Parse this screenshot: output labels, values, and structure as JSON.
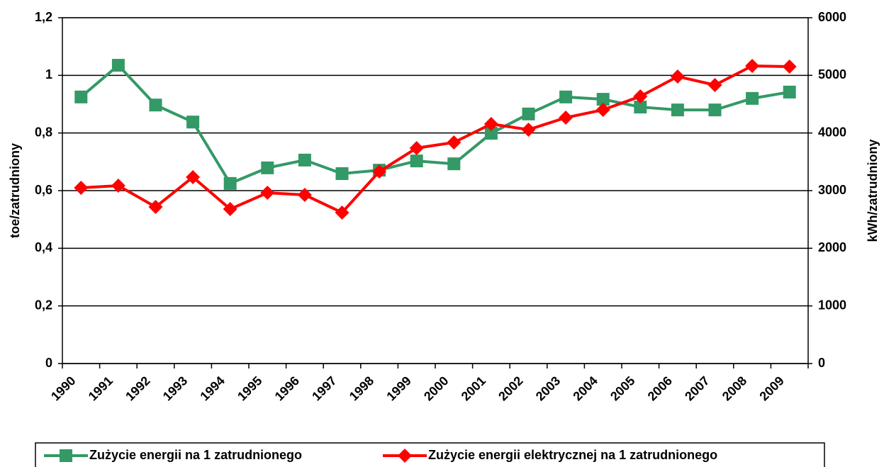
{
  "chart_data": {
    "type": "line",
    "categories": [
      "1990",
      "1991",
      "1992",
      "1993",
      "1994",
      "1995",
      "1996",
      "1997",
      "1998",
      "1999",
      "2000",
      "2001",
      "2002",
      "2003",
      "2004",
      "2005",
      "2006",
      "2007",
      "2008",
      "2009"
    ],
    "series": [
      {
        "name": "Zużycie energii na 1 zatrudnionego",
        "color": "#339966",
        "marker": "square",
        "values": [
          0.925,
          1.035,
          0.897,
          0.838,
          0.625,
          0.679,
          0.706,
          0.659,
          0.671,
          0.703,
          0.693,
          0.799,
          0.866,
          0.925,
          0.917,
          0.89,
          0.88,
          0.88,
          0.92,
          0.942
        ]
      },
      {
        "name": "Zużycie energii elektrycznej na 1 zatrudnionego",
        "color": "#ff0000",
        "marker": "diamond",
        "axis": "y2",
        "values": [
          3049,
          3086,
          2717,
          3234,
          2680,
          2963,
          2926,
          2619,
          3332,
          3738,
          3836,
          4156,
          4058,
          4266,
          4402,
          4635,
          4980,
          4832,
          5164,
          5152
        ]
      }
    ],
    "ylabel": "toe/zatrudniony",
    "y2label": "kWh/zatrudniony",
    "ylim": [
      0,
      1.2
    ],
    "yticks": [
      0,
      {
        "value": 0.2,
        "label": "0,2"
      },
      {
        "value": 0.4,
        "label": "0,4"
      },
      {
        "value": 0.6,
        "label": "0,6"
      },
      {
        "value": 0.8,
        "label": "0,8"
      },
      1,
      {
        "value": 1.2,
        "label": "1,2"
      }
    ],
    "y2lim": [
      0,
      6000
    ],
    "y2ticks": [
      0,
      1000,
      2000,
      3000,
      4000,
      5000,
      6000
    ],
    "grid": true,
    "legend": "bottom"
  }
}
